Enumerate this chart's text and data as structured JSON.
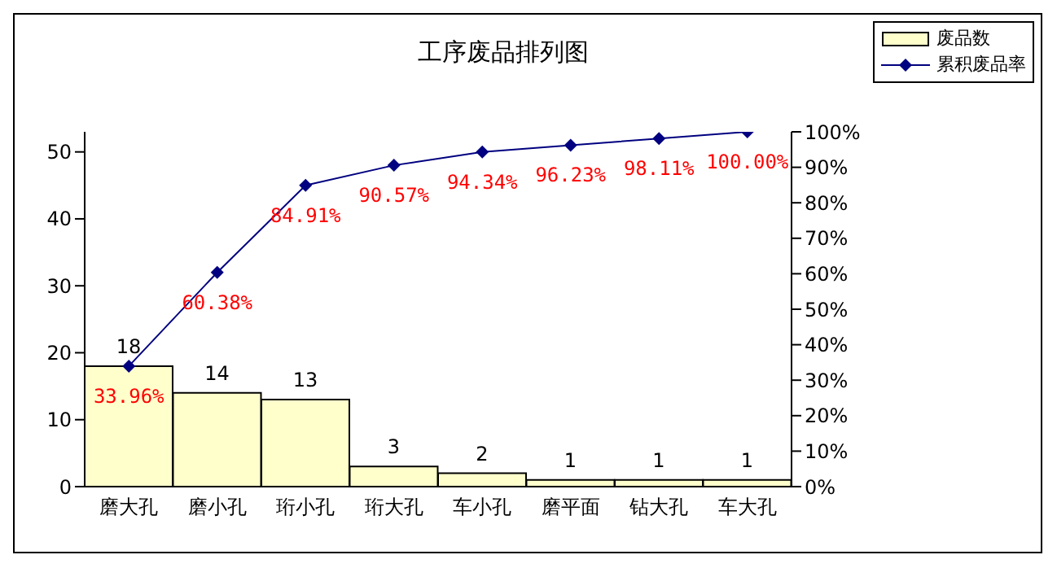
{
  "chart_data": {
    "type": "bar",
    "title": "工序废品排列图",
    "categories": [
      "磨大孔",
      "磨小孔",
      "珩小孔",
      "珩大孔",
      "车小孔",
      "磨平面",
      "钻大孔",
      "车大孔"
    ],
    "series": [
      {
        "name": "废品数",
        "color": "#ffffcc",
        "values": [
          18,
          14,
          13,
          3,
          2,
          1,
          1,
          1
        ],
        "value_labels": [
          "18",
          "14",
          "13",
          "3",
          "2",
          "1",
          "1",
          "1"
        ]
      },
      {
        "name": "累积废品率",
        "type": "line",
        "axis": "y2",
        "color": "#000080",
        "marker": "diamond",
        "values": [
          33.96,
          60.38,
          84.91,
          90.57,
          94.34,
          96.23,
          98.11,
          100
        ],
        "value_labels": [
          "33.96%",
          "60.38%",
          "84.91%",
          "90.57%",
          "94.34%",
          "96.23%",
          "98.11%",
          "100.00%"
        ]
      }
    ],
    "ylim": [
      0,
      53
    ],
    "yticks": [
      0,
      10,
      20,
      30,
      40,
      50
    ],
    "y2lim": [
      0,
      100
    ],
    "y2ticks": [
      {
        "value": 0,
        "label": "0%"
      },
      {
        "value": 10,
        "label": "10%"
      },
      {
        "value": 20,
        "label": "20%"
      },
      {
        "value": 30,
        "label": "30%"
      },
      {
        "value": 40,
        "label": "40%"
      },
      {
        "value": 50,
        "label": "50%"
      },
      {
        "value": 60,
        "label": "60%"
      },
      {
        "value": 70,
        "label": "70%"
      },
      {
        "value": 80,
        "label": "80%"
      },
      {
        "value": 90,
        "label": "90%"
      },
      {
        "value": 100,
        "label": "100%"
      }
    ],
    "grid": false,
    "legend": "top right"
  }
}
